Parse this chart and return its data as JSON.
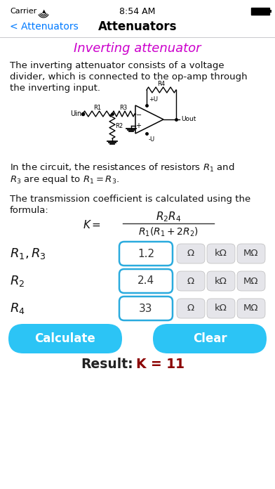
{
  "bg_color": "#ffffff",
  "nav_back_text": "< Attenuators",
  "nav_title": "Attenuators",
  "nav_back_color": "#007AFF",
  "nav_title_color": "#000000",
  "section_title": "Inverting attenuator",
  "section_title_color": "#CC00CC",
  "body_text_1_line1": "The inverting attenuator consists of a voltage",
  "body_text_1_line2": "divider, which is connected to the op-amp through",
  "body_text_1_line3": "the inverting input.",
  "body_text_2_line1": "In the circuit, the resistances of resistors $R_1$ and",
  "body_text_2_line2": "$R_3$ are equal to $R_1 = R_3$.",
  "body_text_3_line1": "The transmission coefficient is calculated using the",
  "body_text_3_line2": "formula:",
  "rows": [
    {
      "label": "$R_1, R_3$",
      "value": "1.2",
      "units": [
        "Ω",
        "kΩ",
        "MΩ"
      ]
    },
    {
      "label": "$R_2$",
      "value": "2.4",
      "units": [
        "Ω",
        "kΩ",
        "MΩ"
      ]
    },
    {
      "label": "$R_4$",
      "value": "33",
      "units": [
        "Ω",
        "kΩ",
        "MΩ"
      ]
    }
  ],
  "btn_calculate": "Calculate",
  "btn_clear": "Clear",
  "btn_color": "#2CC4F5",
  "btn_text_color": "#ffffff",
  "result_prefix": "Result:  ",
  "result_value": "K = 11",
  "result_prefix_color": "#222222",
  "result_value_color": "#8B0000",
  "input_border_color": "#2AABDE",
  "input_bg": "#ffffff",
  "unit_btn_bg": "#E5E5EA",
  "unit_btn_color": "#333333",
  "text_color": "#111111",
  "separator_color": "#C8C8CC"
}
